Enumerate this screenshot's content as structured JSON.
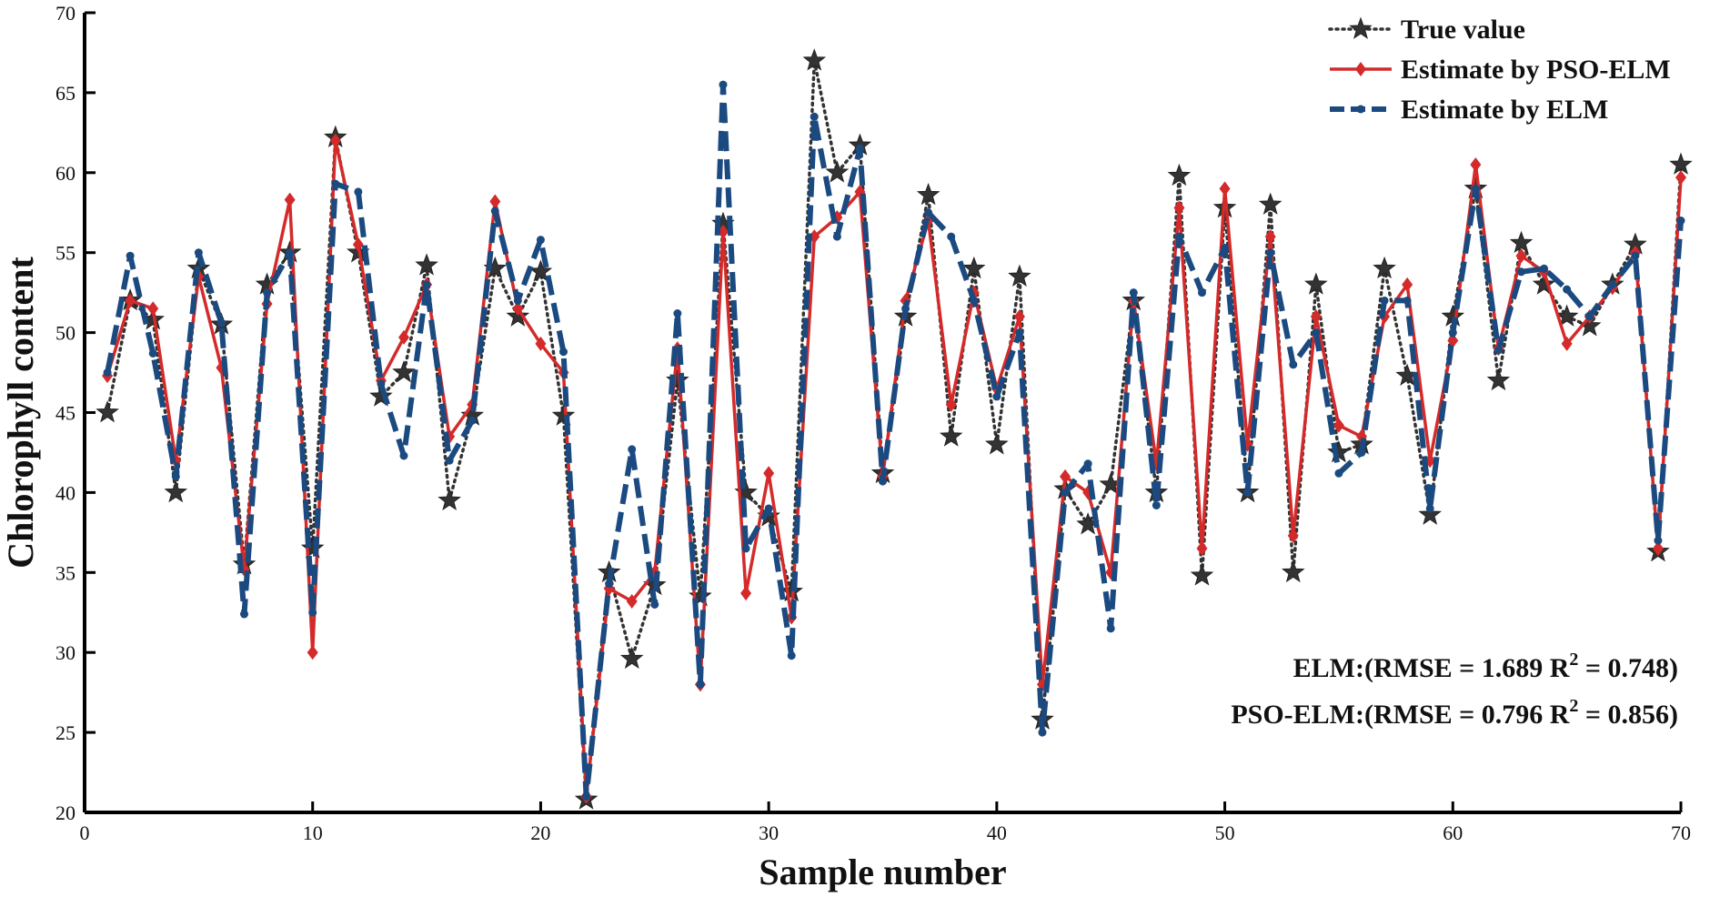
{
  "chart_data": {
    "type": "line",
    "xlabel": "Sample number",
    "ylabel": "Chlorophyll content",
    "xlim": [
      0,
      70
    ],
    "ylim": [
      20,
      70
    ],
    "xticks": [
      0,
      10,
      20,
      30,
      40,
      50,
      60,
      70
    ],
    "yticks": [
      20,
      25,
      30,
      35,
      40,
      45,
      50,
      55,
      60,
      65,
      70
    ],
    "grid": false,
    "legend_position": "top-right",
    "x": [
      1,
      2,
      3,
      4,
      5,
      6,
      7,
      8,
      9,
      10,
      11,
      12,
      13,
      14,
      15,
      16,
      17,
      18,
      19,
      20,
      21,
      22,
      23,
      24,
      25,
      26,
      27,
      28,
      29,
      30,
      31,
      32,
      33,
      34,
      35,
      36,
      37,
      38,
      39,
      40,
      41,
      42,
      43,
      44,
      45,
      46,
      47,
      48,
      49,
      50,
      51,
      52,
      53,
      54,
      55,
      56,
      57,
      58,
      59,
      60,
      61,
      62,
      63,
      64,
      65,
      66,
      67,
      68,
      69,
      70
    ],
    "series": [
      {
        "name": "True value",
        "color": "#333333",
        "style": "dotted",
        "marker": "star",
        "values": [
          45.0,
          52.0,
          50.8,
          40.0,
          54.0,
          50.5,
          35.5,
          53.0,
          55.0,
          36.5,
          62.2,
          55.0,
          46.0,
          47.5,
          54.2,
          39.5,
          44.8,
          54.0,
          51.0,
          53.8,
          44.8,
          20.8,
          35.0,
          29.6,
          34.2,
          47.0,
          33.5,
          56.8,
          40.0,
          38.5,
          33.8,
          67.0,
          60.0,
          61.7,
          41.2,
          51.0,
          58.6,
          43.5,
          54.0,
          43.0,
          53.5,
          25.8,
          40.2,
          38.0,
          40.5,
          52.0,
          40.0,
          59.8,
          34.8,
          57.8,
          40.0,
          58.0,
          35.0,
          53.0,
          42.5,
          43.0,
          54.0,
          47.3,
          38.6,
          51.0,
          59.0,
          47.0,
          55.6,
          53.0,
          51.0,
          50.4,
          53.0,
          55.5,
          36.3,
          60.5
        ]
      },
      {
        "name": "Estimate by PSO-ELM",
        "color": "#d42a2a",
        "style": "solid",
        "marker": "diamond",
        "values": [
          47.3,
          52.0,
          51.5,
          42.0,
          53.5,
          47.8,
          35.2,
          51.8,
          58.3,
          30.0,
          62.0,
          55.5,
          47.0,
          49.7,
          53.0,
          43.5,
          45.5,
          58.2,
          51.5,
          49.3,
          47.5,
          21.0,
          34.0,
          33.2,
          35.0,
          49.0,
          28.0,
          56.3,
          33.7,
          41.2,
          32.2,
          56.0,
          57.2,
          58.8,
          41.0,
          52.0,
          57.0,
          45.5,
          52.5,
          46.5,
          51.0,
          28.0,
          41.0,
          40.0,
          35.0,
          52.0,
          41.8,
          57.8,
          36.5,
          59.0,
          43.0,
          56.0,
          37.3,
          51.0,
          44.2,
          43.5,
          51.0,
          53.0,
          42.0,
          49.5,
          60.5,
          49.0,
          54.8,
          53.8,
          49.3,
          51.0,
          52.8,
          55.0,
          36.5,
          59.7
        ]
      },
      {
        "name": "Estimate by ELM",
        "color": "#1b4a80",
        "style": "dashed",
        "marker": "circle",
        "values": [
          47.5,
          54.8,
          48.7,
          41.0,
          55.0,
          50.6,
          32.4,
          52.5,
          55.0,
          32.5,
          59.3,
          58.8,
          46.8,
          42.3,
          53.0,
          42.0,
          44.5,
          57.6,
          52.0,
          55.8,
          48.8,
          21.0,
          34.3,
          42.7,
          33.0,
          51.2,
          28.0,
          65.5,
          36.5,
          39.0,
          29.8,
          63.5,
          56.0,
          61.5,
          40.7,
          51.5,
          57.5,
          56.0,
          52.0,
          46.0,
          50.0,
          25.0,
          40.0,
          41.8,
          31.5,
          52.5,
          39.2,
          56.0,
          52.5,
          55.3,
          40.0,
          55.0,
          48.0,
          50.0,
          41.2,
          42.5,
          52.0,
          52.0,
          39.0,
          50.0,
          59.0,
          48.9,
          53.8,
          54.0,
          52.7,
          51.0,
          53.0,
          54.8,
          37.0,
          57.0
        ]
      }
    ],
    "annotations": [
      {
        "prefix": "ELM:(RMSE = 1.689 R",
        "sup": "2",
        "suffix": " = 0.748)"
      },
      {
        "prefix": "PSO-ELM:(RMSE = 0.796 R",
        "sup": "2",
        "suffix": " = 0.856)"
      }
    ]
  }
}
